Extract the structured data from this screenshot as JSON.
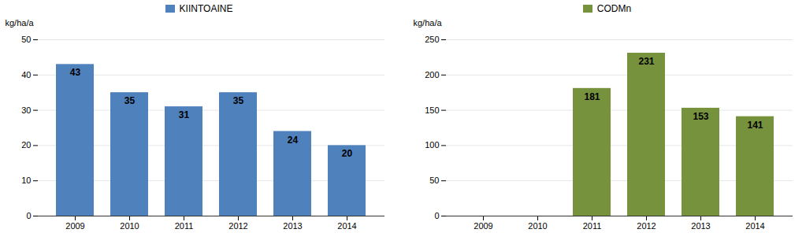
{
  "chart_data": [
    {
      "type": "bar",
      "categories": [
        "2009",
        "2010",
        "2011",
        "2012",
        "2013",
        "2014"
      ],
      "series": [
        {
          "name": "KIINTOAINE",
          "color": "#4F81BD",
          "values": [
            43,
            35,
            31,
            35,
            24,
            20
          ]
        }
      ],
      "y_label": "kg/ha/a",
      "ylim": [
        0,
        50
      ],
      "yticks": [
        0,
        10,
        20,
        30,
        40,
        50
      ],
      "grid": true,
      "legend": "top",
      "data_labels": true
    },
    {
      "type": "bar",
      "categories": [
        "2009",
        "2010",
        "2011",
        "2012",
        "2013",
        "2014"
      ],
      "series": [
        {
          "name": "CODMn",
          "color": "#76923C",
          "values": [
            0,
            0,
            181,
            231,
            153,
            141
          ],
          "value_labels": [
            null,
            null,
            "181",
            "231",
            "153",
            "141"
          ]
        }
      ],
      "y_label": "kg/ha/a",
      "ylim": [
        0,
        250
      ],
      "yticks": [
        0,
        50,
        100,
        150,
        200,
        250
      ],
      "grid": true,
      "legend": "top",
      "data_labels": true
    }
  ]
}
